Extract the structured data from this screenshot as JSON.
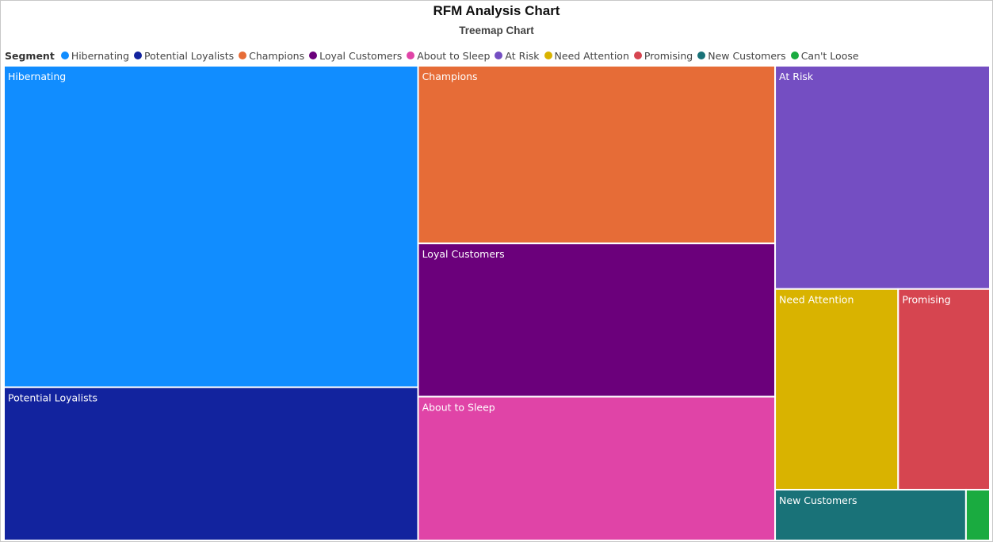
{
  "chart_data": {
    "type": "treemap",
    "title": "RFM Analysis Chart",
    "subtitle": "Treemap Chart",
    "legend_title": "Segment",
    "legend_position": "top-left",
    "series": [
      {
        "name": "Hibernating",
        "value": 275,
        "color": "#118DFF"
      },
      {
        "name": "Potential Loyalists",
        "value": 131,
        "color": "#12239E"
      },
      {
        "name": "Champions",
        "value": 131,
        "color": "#E66C37"
      },
      {
        "name": "Loyal Customers",
        "value": 113,
        "color": "#6B007B"
      },
      {
        "name": "About to Sleep",
        "value": 106,
        "color": "#E044A7"
      },
      {
        "name": "At Risk",
        "value": 99,
        "color": "#744EC2"
      },
      {
        "name": "Need Attention",
        "value": 51,
        "color": "#D9B300"
      },
      {
        "name": "Promising",
        "value": 38,
        "color": "#D64550"
      },
      {
        "name": "New Customers",
        "value": 20,
        "color": "#197278"
      },
      {
        "name": "Can't Loose",
        "value": 2.5,
        "color": "#1AAB40"
      }
    ]
  }
}
